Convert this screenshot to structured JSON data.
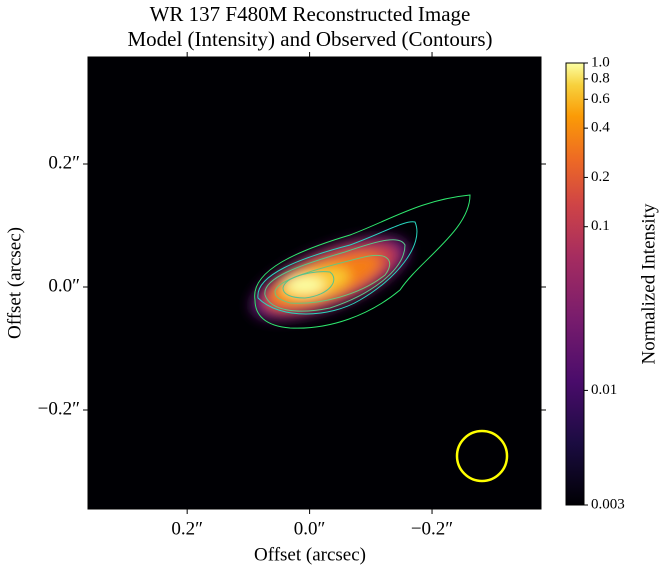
{
  "chart_data": {
    "type": "image",
    "title": [
      "WR 137 F480M Reconstructed Image",
      "Model (Intensity) and Observed (Contours)"
    ],
    "xlabel": "Offset (arcsec)",
    "ylabel": "Offset (arcsec)",
    "xlim": [
      0.362,
      -0.378
    ],
    "ylim": [
      -0.361,
      0.374
    ],
    "xticks": [
      {
        "value": 0.2,
        "label": "0.2″"
      },
      {
        "value": 0.0,
        "label": "0.0″"
      },
      {
        "value": -0.2,
        "label": "−0.2″"
      }
    ],
    "yticks": [
      {
        "value": 0.2,
        "label": "0.2″"
      },
      {
        "value": 0.0,
        "label": "0.0″"
      },
      {
        "value": -0.2,
        "label": "−0.2″"
      }
    ],
    "colorbar": {
      "label": "Normalized Intensity",
      "scale": "symlog",
      "linthresh": 0.01,
      "lim": [
        0.003,
        1.0
      ],
      "ticks": [
        {
          "value": 1.0,
          "label": "1.0"
        },
        0.8,
        0.6,
        0.4,
        0.2,
        0.1,
        0.01,
        0.003
      ]
    }
  }
}
